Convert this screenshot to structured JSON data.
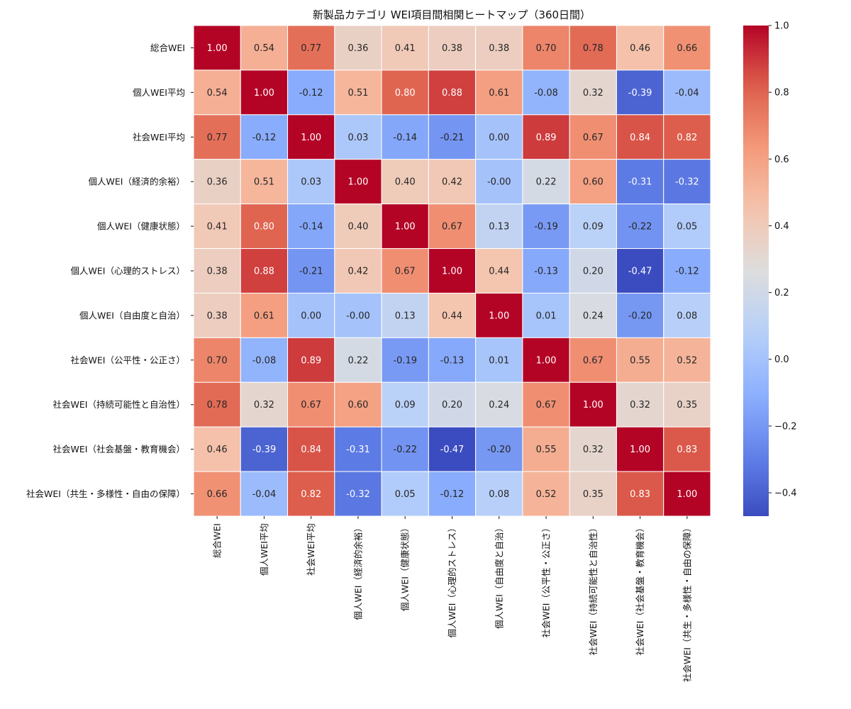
{
  "chart_data": {
    "type": "heatmap",
    "title": "新製品カテゴリ WEI項目間相関ヒートマップ（360日間）",
    "labels": [
      "総合WEI",
      "個人WEI平均",
      "社会WEI平均",
      "個人WEI（経済的余裕）",
      "個人WEI（健康状態）",
      "個人WEI（心理的ストレス）",
      "個人WEI（自由度と自治）",
      "社会WEI（公平性・公正さ）",
      "社会WEI（持続可能性と自治性）",
      "社会WEI（社会基盤・教育機会）",
      "社会WEI（共生・多様性・自由の保障）"
    ],
    "values": [
      [
        1.0,
        0.54,
        0.77,
        0.36,
        0.41,
        0.38,
        0.38,
        0.7,
        0.78,
        0.46,
        0.66
      ],
      [
        0.54,
        1.0,
        -0.12,
        0.51,
        0.8,
        0.88,
        0.61,
        -0.08,
        0.32,
        -0.39,
        -0.04
      ],
      [
        0.77,
        -0.12,
        1.0,
        0.03,
        -0.14,
        -0.21,
        0.0,
        0.89,
        0.67,
        0.84,
        0.82
      ],
      [
        0.36,
        0.51,
        0.03,
        1.0,
        0.4,
        0.42,
        -0.001,
        0.22,
        0.6,
        -0.31,
        -0.32
      ],
      [
        0.41,
        0.8,
        -0.14,
        0.4,
        1.0,
        0.67,
        0.13,
        -0.19,
        0.09,
        -0.22,
        0.05
      ],
      [
        0.38,
        0.88,
        -0.21,
        0.42,
        0.67,
        1.0,
        0.44,
        -0.13,
        0.2,
        -0.47,
        -0.12
      ],
      [
        0.38,
        0.61,
        0.0,
        -0.001,
        0.13,
        0.44,
        1.0,
        0.01,
        0.24,
        -0.2,
        0.08
      ],
      [
        0.7,
        -0.08,
        0.89,
        0.22,
        -0.19,
        -0.13,
        0.01,
        1.0,
        0.67,
        0.55,
        0.52
      ],
      [
        0.78,
        0.32,
        0.67,
        0.6,
        0.09,
        0.2,
        0.24,
        0.67,
        1.0,
        0.32,
        0.35
      ],
      [
        0.46,
        -0.39,
        0.84,
        -0.31,
        -0.22,
        -0.47,
        -0.2,
        0.55,
        0.32,
        1.0,
        0.83
      ],
      [
        0.66,
        -0.04,
        0.82,
        -0.32,
        0.05,
        -0.12,
        0.08,
        0.52,
        0.35,
        0.83,
        1.0
      ]
    ],
    "value_format": "0.00",
    "colormap": "coolwarm",
    "vmin": -0.47,
    "vmax": 1.0,
    "colorbar_ticks": [
      1.0,
      0.8,
      0.6,
      0.4,
      0.2,
      0.0,
      -0.2,
      -0.4
    ],
    "colorbar_tick_labels": [
      "1.0",
      "0.8",
      "0.6",
      "0.4",
      "0.2",
      "0.0",
      "−0.2",
      "−0.4"
    ],
    "xlabel": "",
    "ylabel": ""
  }
}
